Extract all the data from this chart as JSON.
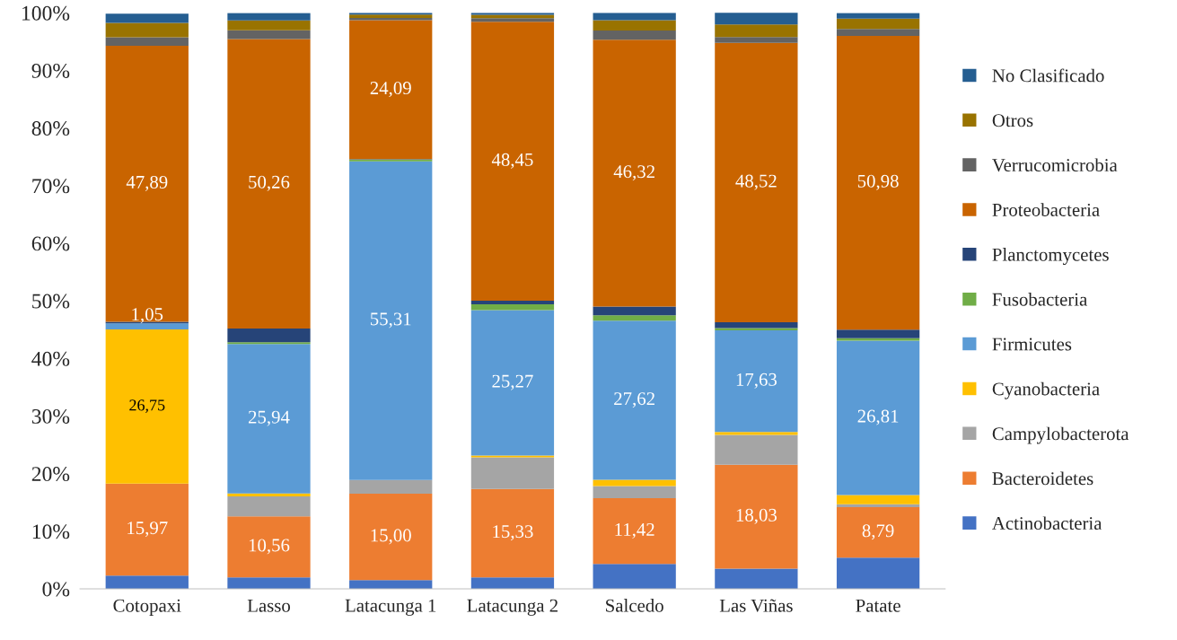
{
  "chart_data": {
    "type": "bar",
    "stacked": true,
    "categories": [
      "Cotopaxi",
      "Lasso",
      "Latacunga 1",
      "Latacunga 2",
      "Salcedo",
      "Las Viñas",
      "Patate"
    ],
    "series": [
      {
        "name": "Actinobacteria",
        "color": "#4472c4",
        "values": [
          2.3,
          2.0,
          1.5,
          2.0,
          4.3,
          3.5,
          5.4
        ]
      },
      {
        "name": "Bacteroidetes",
        "color": "#ed7d31",
        "values": [
          15.97,
          10.56,
          15.0,
          15.33,
          11.42,
          18.03,
          8.79
        ],
        "value_labels": [
          "15,97",
          "10,56",
          "15,00",
          "15,33",
          "11,42",
          "18,03",
          "8,79"
        ]
      },
      {
        "name": "Campylobacterota",
        "color": "#a5a5a5",
        "values": [
          0,
          3.5,
          2.4,
          5.5,
          2.1,
          5.2,
          0.5
        ]
      },
      {
        "name": "Cyanobacteria",
        "color": "#ffc000",
        "values": [
          26.75,
          0.5,
          0,
          0.3,
          1.1,
          0.5,
          1.6
        ],
        "value_labels": [
          "26,75",
          null,
          null,
          null,
          null,
          null,
          null
        ]
      },
      {
        "name": "Firmicutes",
        "color": "#5b9bd5",
        "values": [
          1.05,
          25.94,
          55.31,
          25.27,
          27.62,
          17.63,
          26.81
        ],
        "value_labels": [
          "1,05",
          "25,94",
          "55,31",
          "25,27",
          "27,62",
          "17,63",
          "26,81"
        ]
      },
      {
        "name": "Fusobacteria",
        "color": "#70ad47",
        "values": [
          0,
          0.3,
          0.3,
          1.0,
          0.95,
          0.4,
          0.4
        ]
      },
      {
        "name": "Planctomycetes",
        "color": "#264478",
        "values": [
          0.3,
          2.4,
          0.1,
          0.6,
          1.5,
          1.0,
          1.5
        ]
      },
      {
        "name": "Proteobacteria",
        "color": "#c96400",
        "values": [
          47.89,
          50.26,
          24.09,
          48.45,
          46.32,
          48.52,
          50.98
        ],
        "value_labels": [
          "47,89",
          "50,26",
          "24,09",
          "48,45",
          "46,32",
          "48,52",
          "50,98"
        ]
      },
      {
        "name": "Verrucomicrobia",
        "color": "#636363",
        "values": [
          1.5,
          1.5,
          0.4,
          0.6,
          1.6,
          1.0,
          1.2
        ]
      },
      {
        "name": "Otros",
        "color": "#997300",
        "values": [
          2.5,
          1.7,
          0.6,
          0.6,
          1.8,
          2.2,
          1.8
        ]
      },
      {
        "name": "No Clasificado",
        "color": "#255e91",
        "values": [
          1.6,
          1.3,
          0.3,
          0.35,
          1.3,
          2.1,
          1.0
        ]
      }
    ],
    "ylim": [
      0,
      100
    ],
    "yticks": [
      {
        "value": 0,
        "label": "0%"
      },
      {
        "value": 10,
        "label": "10%"
      },
      {
        "value": 20,
        "label": "20%"
      },
      {
        "value": 30,
        "label": "30%"
      },
      {
        "value": 40,
        "label": "40%"
      },
      {
        "value": 50,
        "label": "50%"
      },
      {
        "value": 60,
        "label": "60%"
      },
      {
        "value": 70,
        "label": "70%"
      },
      {
        "value": 80,
        "label": "80%"
      },
      {
        "value": 90,
        "label": "90%"
      },
      {
        "value": 100,
        "label": "100%"
      }
    ],
    "grid": false,
    "legend": "right"
  }
}
